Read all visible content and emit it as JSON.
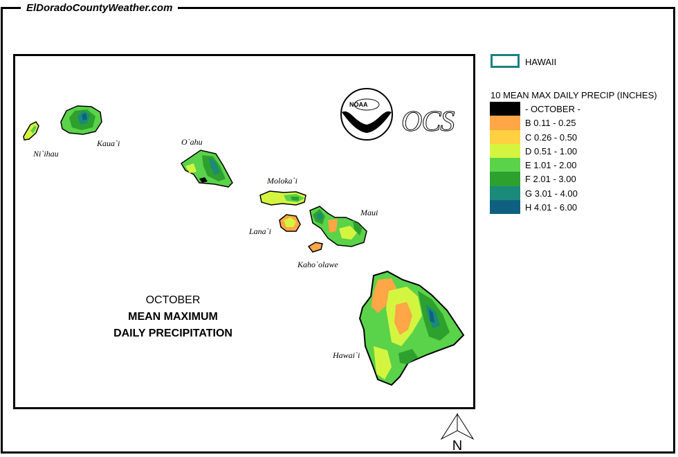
{
  "site": {
    "title": "ElDoradoCountyWeather.com"
  },
  "map": {
    "islands": {
      "niihau": "Ni`ihau",
      "kauai": "Kaua`i",
      "oahu": "O`ahu",
      "molokai": "Moloka`i",
      "lanai": "Lana`i",
      "maui": "Maui",
      "kahoolawe": "Kaho`olawe",
      "hawaii": "Hawai`i"
    },
    "title": {
      "month": "OCTOBER",
      "line1": "MEAN MAXIMUM",
      "line2": "DAILY PRECIPITATION"
    },
    "logos": {
      "noaa": "NOAA",
      "ocs": "OCS"
    }
  },
  "legend": {
    "region_label": "HAWAII",
    "region_color": "#1a8080",
    "title": "10 MEAN MAX DAILY PRECIP (INCHES)",
    "classes": [
      {
        "label": "- OCTOBER -",
        "color": "#000000"
      },
      {
        "label": "B 0.11 - 0.25",
        "color": "#ffa646"
      },
      {
        "label": "C 0.26 - 0.50",
        "color": "#ffd040"
      },
      {
        "label": "D 0.51 - 1.00",
        "color": "#d4f540"
      },
      {
        "label": "E 1.01 - 2.00",
        "color": "#5ad24a"
      },
      {
        "label": "F 2.01 - 3.00",
        "color": "#2ea02e"
      },
      {
        "label": "G 3.01 - 4.00",
        "color": "#1a8a7a"
      },
      {
        "label": "H 4.01 - 6.00",
        "color": "#0f6080"
      }
    ]
  },
  "north_arrow": {
    "label": "N"
  }
}
